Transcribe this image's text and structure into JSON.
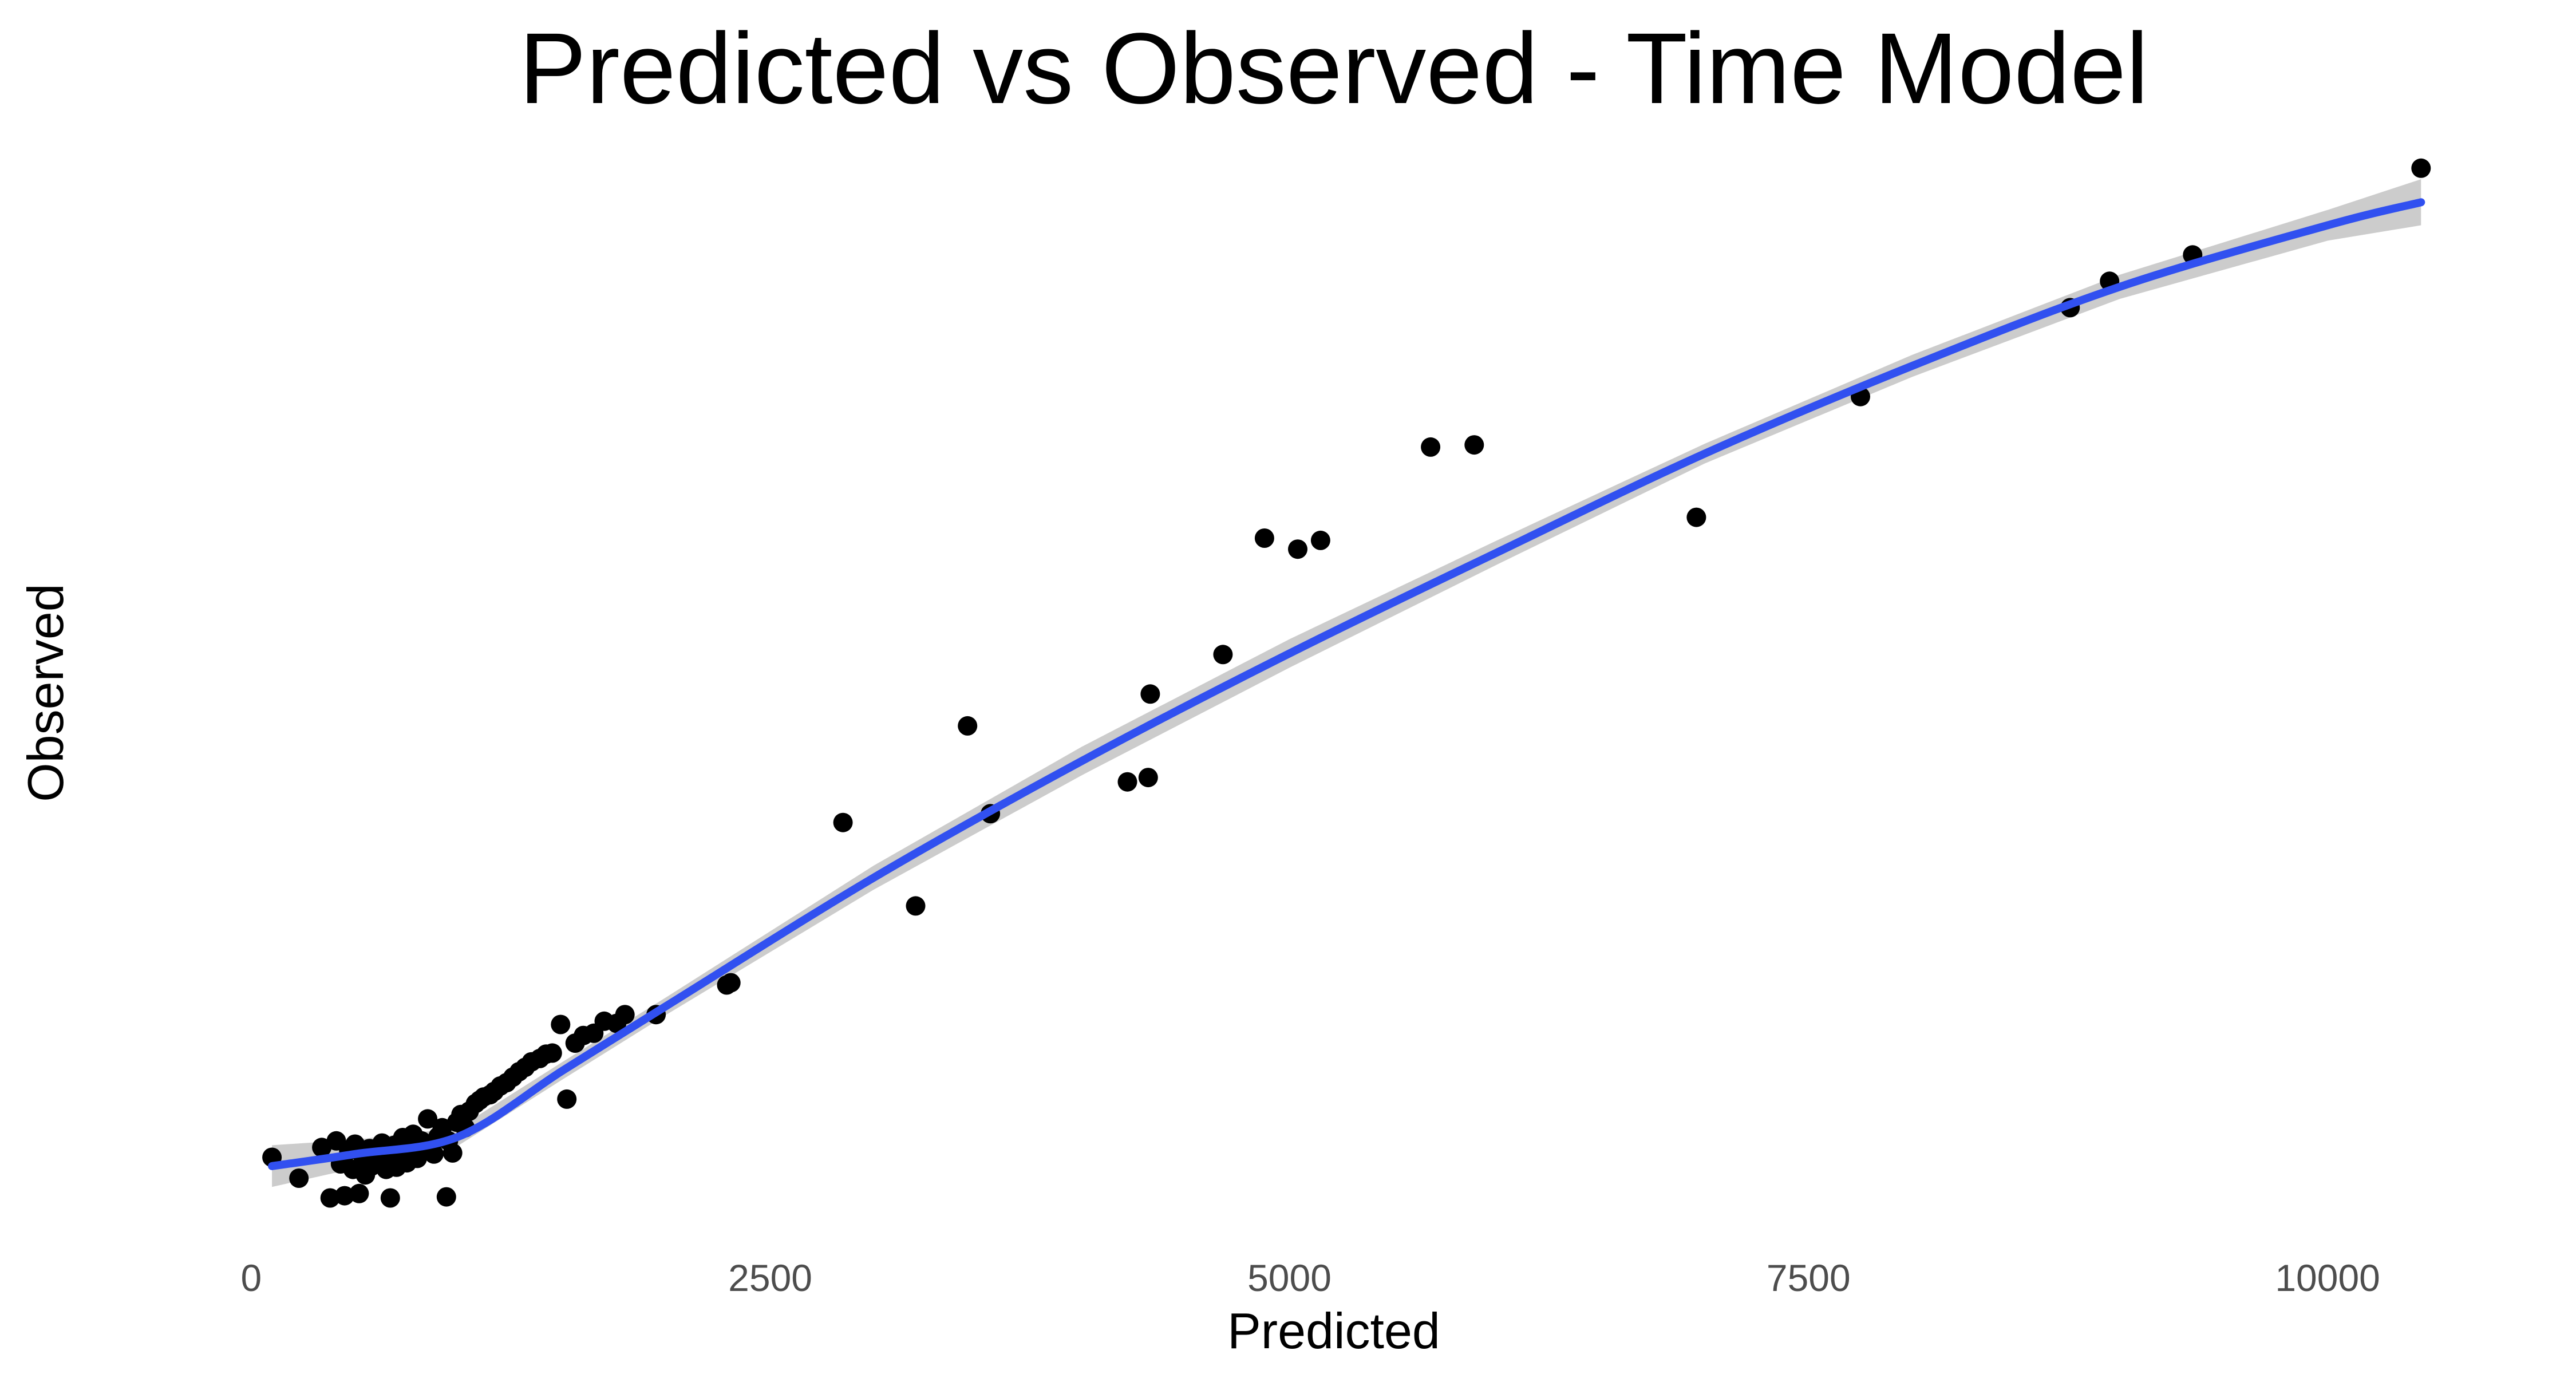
{
  "chart_data": {
    "type": "scatter",
    "title": "Predicted vs Observed - Time Model",
    "xlabel": "Predicted",
    "ylabel": "Observed",
    "xlim": [
      -300,
      10700
    ],
    "ylim": [
      -500,
      9200
    ],
    "x_ticks": [
      0,
      2500,
      5000,
      7500,
      10000
    ],
    "x_tick_labels": [
      "0",
      "2500",
      "5000",
      "7500",
      "10000"
    ],
    "y_ticks_shown": false,
    "grid": false,
    "legend": "none",
    "colors": {
      "points": "#000000",
      "smooth_line": "#3150F0",
      "confidence_band": "#CCCCCC"
    },
    "series": [
      {
        "type": "points",
        "x": [
          100,
          230,
          340,
          380,
          410,
          430,
          450,
          470,
          490,
          500,
          520,
          540,
          550,
          570,
          580,
          600,
          620,
          630,
          650,
          660,
          670,
          690,
          700,
          720,
          730,
          750,
          770,
          780,
          800,
          820,
          840,
          850,
          870,
          880,
          900,
          920,
          940,
          950,
          970,
          990,
          1010,
          1030,
          1050,
          1080,
          1100,
          1120,
          1150,
          1170,
          1200,
          1230,
          1260,
          1290,
          1320,
          1350,
          1390,
          1420,
          1450,
          1490,
          1520,
          1560,
          1600,
          1650,
          1700,
          1760,
          1800,
          1950,
          2290,
          2310,
          2850,
          3200,
          3450,
          3560,
          4220,
          4320,
          4330,
          4680,
          4880,
          5040,
          5150,
          5680,
          5890,
          6960,
          7750,
          8760,
          8950,
          9350,
          10450
        ],
        "y": [
          170,
          -20,
          260,
          -200,
          320,
          110,
          -180,
          230,
          60,
          290,
          -160,
          170,
          10,
          250,
          90,
          240,
          130,
          300,
          60,
          180,
          -200,
          280,
          80,
          210,
          350,
          120,
          240,
          380,
          160,
          320,
          240,
          520,
          290,
          200,
          360,
          440,
          -190,
          320,
          210,
          490,
          560,
          440,
          590,
          660,
          690,
          720,
          740,
          770,
          820,
          850,
          900,
          950,
          990,
          1040,
          1070,
          1110,
          1120,
          1380,
          700,
          1210,
          1280,
          1300,
          1410,
          1390,
          1470,
          1470,
          1740,
          1760,
          3220,
          2460,
          4100,
          3300,
          3590,
          3630,
          4390,
          4750,
          5810,
          5710,
          5790,
          6640,
          6660,
          6000,
          7100,
          7910,
          8150,
          8390,
          9180
        ]
      },
      {
        "type": "smooth",
        "name": "",
        "x": [
          100,
          500,
          1000,
          1500,
          2000,
          3000,
          4000,
          5000,
          6000,
          7000,
          8000,
          9000,
          10000,
          10450
        ],
        "y": [
          90,
          200,
          360,
          960,
          1550,
          2720,
          3780,
          4760,
          5680,
          6580,
          7380,
          8100,
          8660,
          8870
        ],
        "band_low": [
          -100,
          70,
          280,
          880,
          1470,
          2610,
          3650,
          4630,
          5570,
          6490,
          7280,
          7990,
          8520,
          8660
        ],
        "band_high": [
          280,
          330,
          440,
          1040,
          1630,
          2830,
          3910,
          4890,
          5790,
          6670,
          7480,
          8210,
          8800,
          9080
        ]
      }
    ]
  }
}
